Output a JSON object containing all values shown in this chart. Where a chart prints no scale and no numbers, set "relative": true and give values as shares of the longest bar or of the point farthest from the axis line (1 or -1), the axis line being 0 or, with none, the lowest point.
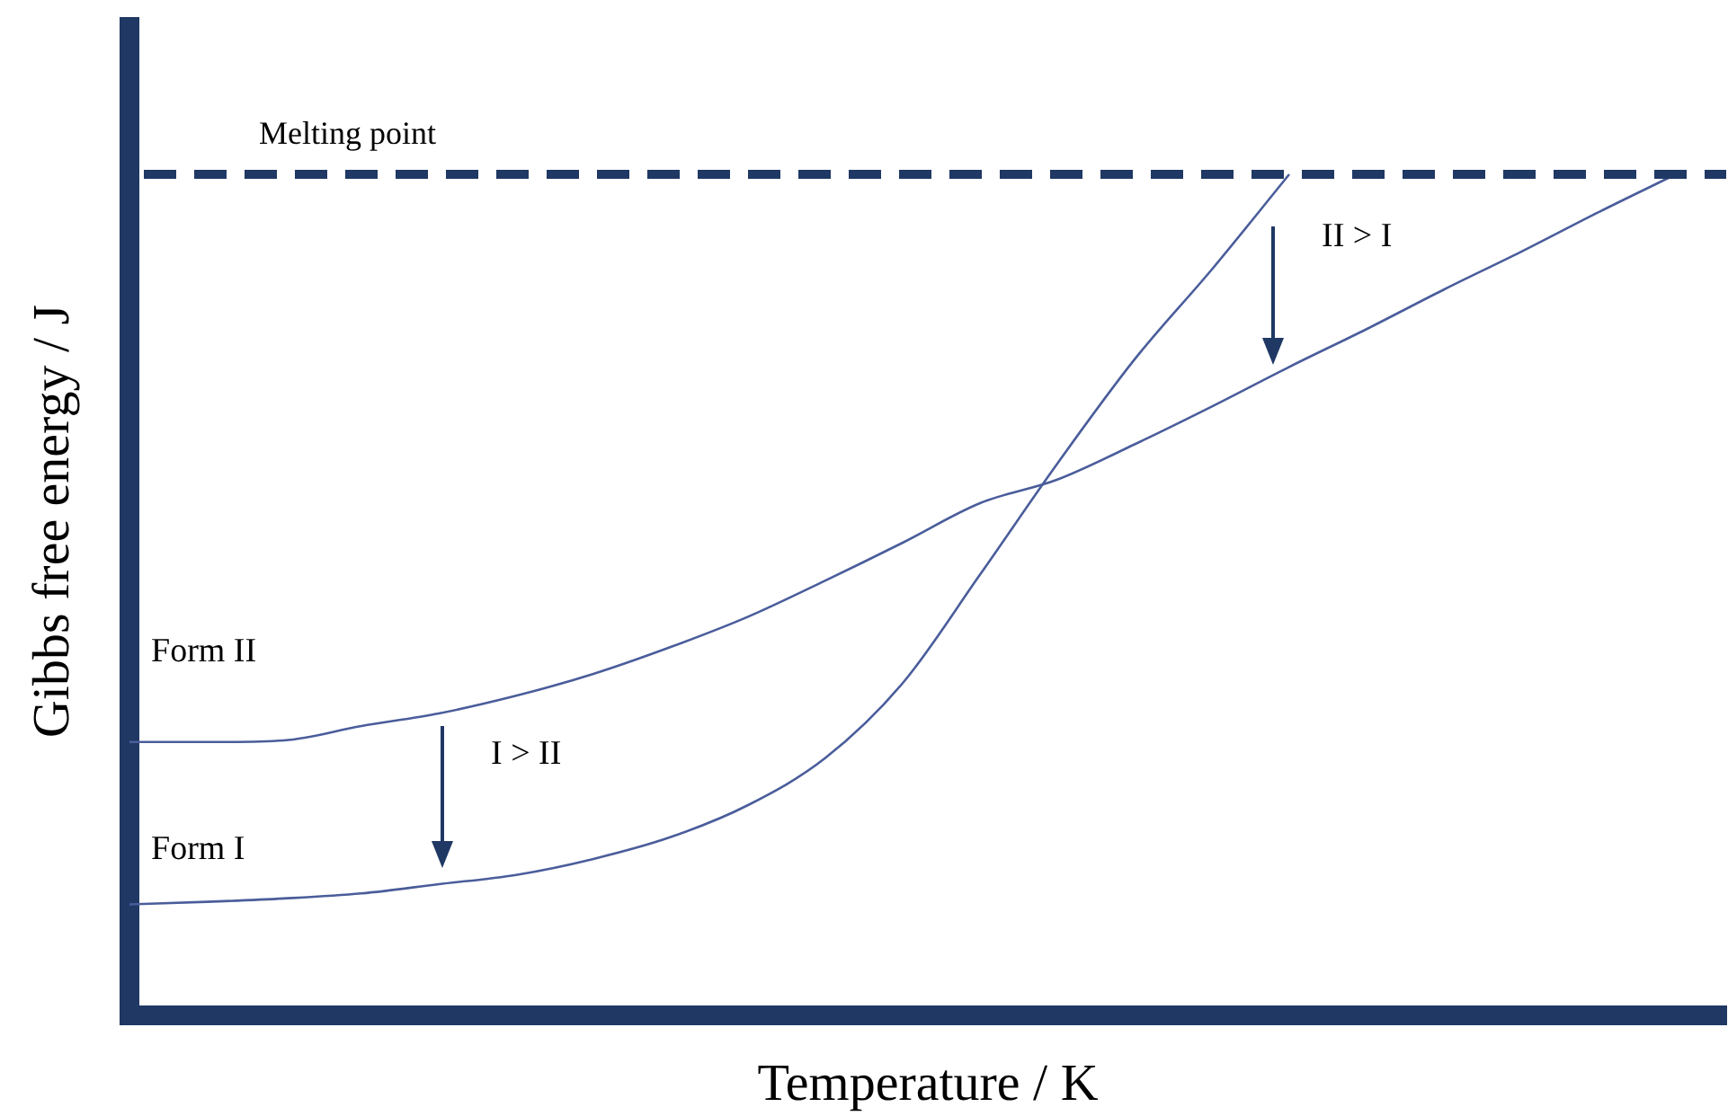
{
  "chart_data": {
    "type": "line",
    "relative": true,
    "xlabel": "Temperature / K",
    "ylabel": "Gibbs free energy / J",
    "categories": [
      null,
      null,
      null,
      null,
      null,
      null,
      null,
      null,
      null,
      null,
      null,
      null,
      null,
      null,
      null,
      null,
      null,
      null,
      null,
      null,
      null
    ],
    "series": [
      {
        "name": "Form II",
        "color": "#4a5d9b",
        "values": [
          0.325,
          0.325,
          0.327,
          0.344,
          0.359,
          0.38,
          0.406,
          0.438,
          0.474,
          0.517,
          0.562,
          0.609,
          0.637,
          0.679,
          0.724,
          0.771,
          0.816,
          0.863,
          0.908,
          0.955,
          1
        ]
      },
      {
        "name": "Form I",
        "color": "#4a5d9b",
        "values": [
          0.132,
          0.135,
          0.139,
          0.145,
          0.156,
          0.167,
          0.186,
          0.212,
          0.25,
          0.306,
          0.395,
          0.524,
          0.656,
          0.78,
          0.887,
          1,
          null,
          null,
          null,
          null,
          null
        ]
      }
    ],
    "ref_lines": [
      {
        "axis": "y",
        "value": 1,
        "label": "Melting point",
        "color": "#1f3864",
        "line_style": "dashed"
      }
    ],
    "annotations": [
      "II > I",
      "I > II"
    ],
    "legend": false,
    "marker": "none",
    "line_style": "solid"
  }
}
